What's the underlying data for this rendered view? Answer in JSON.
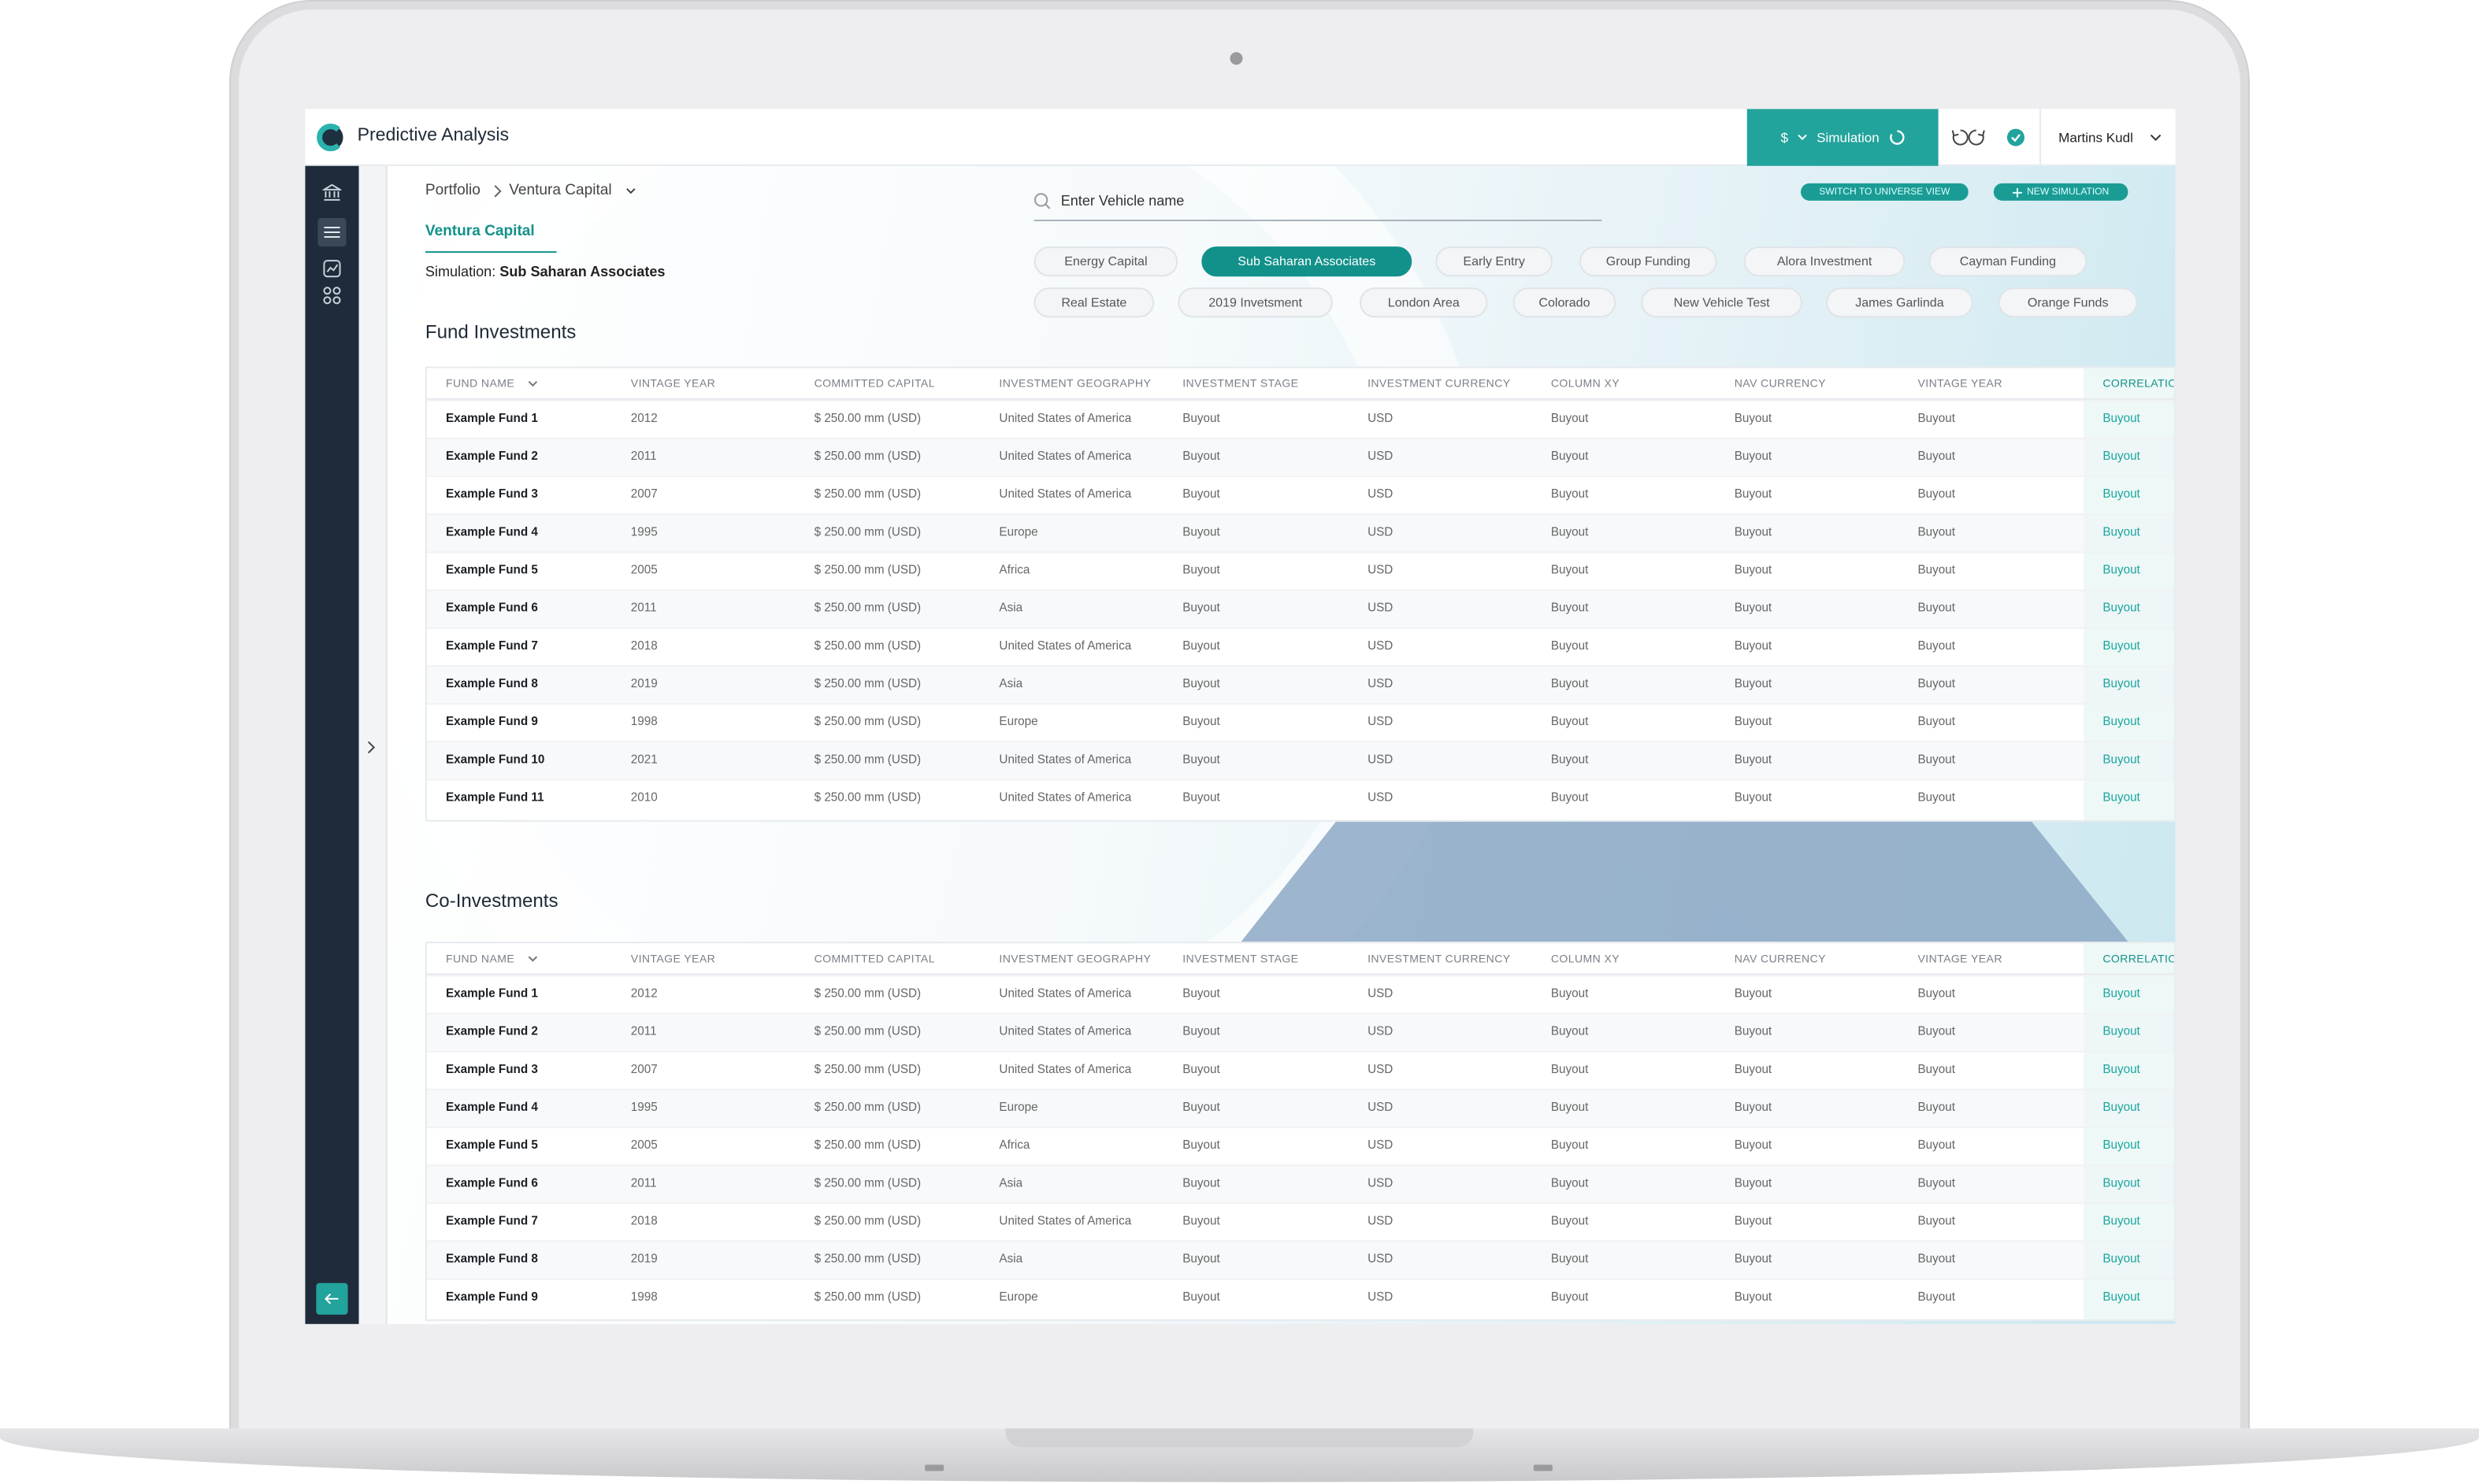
{
  "header": {
    "title": "Predictive Analysis",
    "currency": "$",
    "mode": "Simulation",
    "user": "Martins Kudl"
  },
  "breadcrumb": [
    "Portfolio",
    "Ventura Capital"
  ],
  "tab": "Ventura Capital",
  "simulation": {
    "label": "Simulation:",
    "name": "Sub Saharan Associates"
  },
  "search": {
    "placeholder": "Enter Vehicle name"
  },
  "actions": [
    "SWITCH TO UNIVERSE VIEW",
    "NEW SIMULATION"
  ],
  "chips": [
    {
      "label": "Energy Capital",
      "selected": false
    },
    {
      "label": "Sub Saharan Associates",
      "selected": true
    },
    {
      "label": "Early Entry",
      "selected": false
    },
    {
      "label": "Group Funding",
      "selected": false
    },
    {
      "label": "Alora Investment",
      "selected": false
    },
    {
      "label": "Cayman Funding",
      "selected": false
    },
    {
      "label": "Real Estate",
      "selected": false
    },
    {
      "label": "2019 Invetsment",
      "selected": false
    },
    {
      "label": "London Area",
      "selected": false
    },
    {
      "label": "Colorado",
      "selected": false
    },
    {
      "label": "New Vehicle Test",
      "selected": false
    },
    {
      "label": "James Garlinda",
      "selected": false
    },
    {
      "label": "Orange Funds",
      "selected": false
    }
  ],
  "tables": [
    {
      "title": "Fund Investments",
      "columns": [
        "FUND NAME",
        "VINTAGE YEAR",
        "COMMITTED CAPITAL",
        "INVESTMENT GEOGRAPHY",
        "INVESTMENT STAGE",
        "INVESTMENT CURRENCY",
        "COLUMN XY",
        "NAV CURRENCY",
        "VINTAGE YEAR",
        "CORRELATION"
      ],
      "rows": [
        [
          "Example Fund 1",
          "2012",
          "$ 250.00 mm (USD)",
          "United States of America",
          "Buyout",
          "USD",
          "Buyout",
          "Buyout",
          "Buyout",
          "Buyout"
        ],
        [
          "Example Fund 2",
          "2011",
          "$ 250.00 mm (USD)",
          "United States of America",
          "Buyout",
          "USD",
          "Buyout",
          "Buyout",
          "Buyout",
          "Buyout"
        ],
        [
          "Example Fund 3",
          "2007",
          "$ 250.00 mm (USD)",
          "United States of America",
          "Buyout",
          "USD",
          "Buyout",
          "Buyout",
          "Buyout",
          "Buyout"
        ],
        [
          "Example Fund 4",
          "1995",
          "$ 250.00 mm (USD)",
          "Europe",
          "Buyout",
          "USD",
          "Buyout",
          "Buyout",
          "Buyout",
          "Buyout"
        ],
        [
          "Example Fund 5",
          "2005",
          "$ 250.00 mm (USD)",
          "Africa",
          "Buyout",
          "USD",
          "Buyout",
          "Buyout",
          "Buyout",
          "Buyout"
        ],
        [
          "Example Fund 6",
          "2011",
          "$ 250.00 mm (USD)",
          "Asia",
          "Buyout",
          "USD",
          "Buyout",
          "Buyout",
          "Buyout",
          "Buyout"
        ],
        [
          "Example Fund 7",
          "2018",
          "$ 250.00 mm (USD)",
          "United States of America",
          "Buyout",
          "USD",
          "Buyout",
          "Buyout",
          "Buyout",
          "Buyout"
        ],
        [
          "Example Fund 8",
          "2019",
          "$ 250.00 mm (USD)",
          "Asia",
          "Buyout",
          "USD",
          "Buyout",
          "Buyout",
          "Buyout",
          "Buyout"
        ],
        [
          "Example Fund 9",
          "1998",
          "$ 250.00 mm (USD)",
          "Europe",
          "Buyout",
          "USD",
          "Buyout",
          "Buyout",
          "Buyout",
          "Buyout"
        ],
        [
          "Example Fund 10",
          "2021",
          "$ 250.00 mm (USD)",
          "United States of America",
          "Buyout",
          "USD",
          "Buyout",
          "Buyout",
          "Buyout",
          "Buyout"
        ],
        [
          "Example Fund 11",
          "2010",
          "$ 250.00 mm (USD)",
          "United States of America",
          "Buyout",
          "USD",
          "Buyout",
          "Buyout",
          "Buyout",
          "Buyout"
        ]
      ]
    },
    {
      "title": "Co-Investments",
      "columns": [
        "FUND NAME",
        "VINTAGE YEAR",
        "COMMITTED CAPITAL",
        "INVESTMENT GEOGRAPHY",
        "INVESTMENT STAGE",
        "INVESTMENT CURRENCY",
        "COLUMN XY",
        "NAV CURRENCY",
        "VINTAGE YEAR",
        "CORRELATION"
      ],
      "rows": [
        [
          "Example Fund 1",
          "2012",
          "$ 250.00 mm (USD)",
          "United States of America",
          "Buyout",
          "USD",
          "Buyout",
          "Buyout",
          "Buyout",
          "Buyout"
        ],
        [
          "Example Fund 2",
          "2011",
          "$ 250.00 mm (USD)",
          "United States of America",
          "Buyout",
          "USD",
          "Buyout",
          "Buyout",
          "Buyout",
          "Buyout"
        ],
        [
          "Example Fund 3",
          "2007",
          "$ 250.00 mm (USD)",
          "United States of America",
          "Buyout",
          "USD",
          "Buyout",
          "Buyout",
          "Buyout",
          "Buyout"
        ],
        [
          "Example Fund 4",
          "1995",
          "$ 250.00 mm (USD)",
          "Europe",
          "Buyout",
          "USD",
          "Buyout",
          "Buyout",
          "Buyout",
          "Buyout"
        ],
        [
          "Example Fund 5",
          "2005",
          "$ 250.00 mm (USD)",
          "Africa",
          "Buyout",
          "USD",
          "Buyout",
          "Buyout",
          "Buyout",
          "Buyout"
        ],
        [
          "Example Fund 6",
          "2011",
          "$ 250.00 mm (USD)",
          "Asia",
          "Buyout",
          "USD",
          "Buyout",
          "Buyout",
          "Buyout",
          "Buyout"
        ],
        [
          "Example Fund 7",
          "2018",
          "$ 250.00 mm (USD)",
          "United States of America",
          "Buyout",
          "USD",
          "Buyout",
          "Buyout",
          "Buyout",
          "Buyout"
        ],
        [
          "Example Fund 8",
          "2019",
          "$ 250.00 mm (USD)",
          "Asia",
          "Buyout",
          "USD",
          "Buyout",
          "Buyout",
          "Buyout",
          "Buyout"
        ],
        [
          "Example Fund 9",
          "1998",
          "$ 250.00 mm (USD)",
          "Europe",
          "Buyout",
          "USD",
          "Buyout",
          "Buyout",
          "Buyout",
          "Buyout"
        ]
      ]
    }
  ]
}
